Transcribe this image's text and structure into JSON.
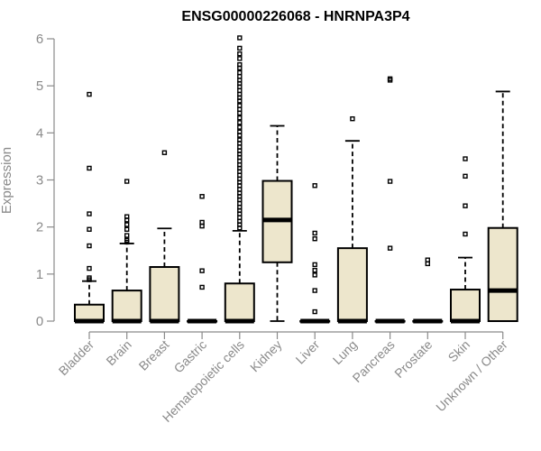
{
  "chart_data": {
    "type": "boxplot",
    "title": "ENSG00000226068 - HNRNPA3P4",
    "ylabel": "Expression",
    "xlabel": "",
    "ylim": [
      0,
      6
    ],
    "yticks": [
      "0",
      "1",
      "2",
      "3",
      "4",
      "5",
      "6"
    ],
    "box_color": "#ede6cc",
    "axis_color": "#8a8a8a",
    "categories": [
      "Bladder",
      "Brain",
      "Breast",
      "Gastric",
      "Hematopoietic cells",
      "Kidney",
      "Liver",
      "Lung",
      "Pancreas",
      "Prostate",
      "Skin",
      "Unknown / Other"
    ],
    "boxes": [
      {
        "category": "Bladder",
        "q1": 0,
        "median": 0,
        "q3": 0.35,
        "whisker_low": 0,
        "whisker_high": 0.85,
        "outliers": [
          4.82,
          3.25,
          2.28,
          1.95,
          1.6,
          1.12,
          0.92,
          0.88
        ]
      },
      {
        "category": "Brain",
        "q1": 0,
        "median": 0,
        "q3": 0.65,
        "whisker_low": 0,
        "whisker_high": 1.65,
        "outliers": [
          2.97,
          2.22,
          2.15,
          2.05,
          1.95,
          1.82,
          1.72,
          1.68
        ]
      },
      {
        "category": "Breast",
        "q1": 0,
        "median": 0,
        "q3": 1.15,
        "whisker_low": 0,
        "whisker_high": 1.97,
        "outliers": [
          3.58
        ]
      },
      {
        "category": "Gastric",
        "q1": 0,
        "median": 0,
        "q3": 0,
        "whisker_low": 0,
        "whisker_high": 0,
        "outliers": [
          2.65,
          2.1,
          2.02,
          1.07,
          0.72
        ]
      },
      {
        "category": "Hematopoietic cells",
        "q1": 0,
        "median": 0,
        "q3": 0.8,
        "whisker_low": 0,
        "whisker_high": 1.92,
        "outliers": [
          6.02,
          5.8,
          5.68,
          5.58,
          5.45,
          5.38,
          5.28,
          5.2,
          5.12,
          5.05,
          4.98,
          4.9,
          4.82,
          4.75,
          4.68,
          4.58,
          4.5,
          4.42,
          4.32,
          4.22,
          4.12,
          4.02,
          3.95,
          3.85,
          3.78,
          3.7,
          3.62,
          3.55,
          3.48,
          3.4,
          3.32,
          3.25,
          3.18,
          3.1,
          3.02,
          2.95,
          2.88,
          2.8,
          2.72,
          2.65,
          2.58,
          2.5,
          2.42,
          2.35,
          2.28,
          2.2,
          2.12,
          2.05,
          1.98
        ]
      },
      {
        "category": "Kidney",
        "q1": 1.25,
        "median": 2.15,
        "q3": 2.98,
        "whisker_low": 0,
        "whisker_high": 4.15,
        "outliers": []
      },
      {
        "category": "Liver",
        "q1": 0,
        "median": 0,
        "q3": 0,
        "whisker_low": 0,
        "whisker_high": 0,
        "outliers": [
          2.88,
          1.87,
          1.75,
          1.2,
          1.08,
          0.98,
          0.65,
          0.2
        ]
      },
      {
        "category": "Lung",
        "q1": 0,
        "median": 0,
        "q3": 1.55,
        "whisker_low": 0,
        "whisker_high": 3.83,
        "outliers": [
          4.3
        ]
      },
      {
        "category": "Pancreas",
        "q1": 0,
        "median": 0,
        "q3": 0,
        "whisker_low": 0,
        "whisker_high": 0,
        "outliers": [
          5.15,
          5.12,
          2.97,
          1.55
        ]
      },
      {
        "category": "Prostate",
        "q1": 0,
        "median": 0,
        "q3": 0,
        "whisker_low": 0,
        "whisker_high": 0,
        "outliers": [
          1.3,
          1.22
        ]
      },
      {
        "category": "Skin",
        "q1": 0,
        "median": 0,
        "q3": 0.67,
        "whisker_low": 0,
        "whisker_high": 1.35,
        "outliers": [
          3.45,
          3.08,
          2.45,
          1.85
        ]
      },
      {
        "category": "Unknown / Other",
        "q1": 0,
        "median": 0.65,
        "q3": 1.98,
        "whisker_low": 0,
        "whisker_high": 4.88,
        "outliers": []
      }
    ]
  }
}
